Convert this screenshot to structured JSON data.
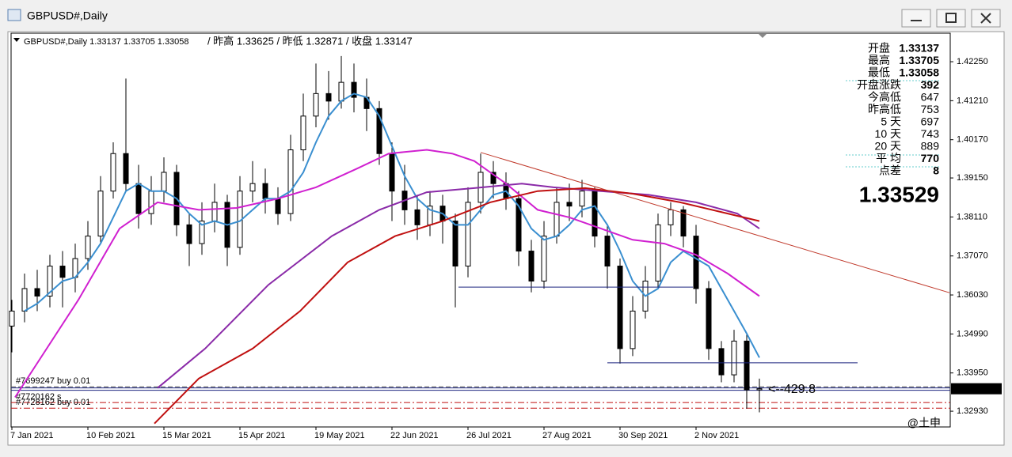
{
  "window": {
    "title": "GBPUSD#,Daily"
  },
  "chart_data": {
    "type": "candlestick",
    "header": "GBPUSD#,Daily  1.33137 1.33705 1.33058",
    "header_extra": "/ 昨高 1.33625 / 昨低 1.32871 / 收盘 1.33147",
    "xlim": [
      0,
      296
    ],
    "ylim": [
      1.3251,
      1.4301
    ],
    "grid": false,
    "yticks": [
      {
        "value": 1.4225,
        "label": "1.42250"
      },
      {
        "value": 1.4121,
        "label": "1.41210"
      },
      {
        "value": 1.4017,
        "label": "1.40170"
      },
      {
        "value": 1.3915,
        "label": "1.39150"
      },
      {
        "value": 1.3811,
        "label": "1.38110"
      },
      {
        "value": 1.3707,
        "label": "1.37070"
      },
      {
        "value": 1.3603,
        "label": "1.36030"
      },
      {
        "value": 1.3499,
        "label": "1.34990"
      },
      {
        "value": 1.3395,
        "label": "1.33950"
      },
      {
        "value": 1.3293,
        "label": "1.32930"
      }
    ],
    "xticks": [
      {
        "value": 0,
        "label": "7 Jan 2021"
      },
      {
        "value": 24,
        "label": "10 Feb 2021"
      },
      {
        "value": 48,
        "label": "15 Mar 2021"
      },
      {
        "value": 72,
        "label": "15 Apr 2021"
      },
      {
        "value": 96,
        "label": "19 May 2021"
      },
      {
        "value": 120,
        "label": "22 Jun 2021"
      },
      {
        "value": 144,
        "label": "26 Jul 2021"
      },
      {
        "value": 168,
        "label": "27 Aug 2021"
      },
      {
        "value": 192,
        "label": "30 Sep 2021"
      },
      {
        "value": 216,
        "label": "2 Nov 2021"
      }
    ],
    "candles": {
      "x": [
        0,
        4,
        8,
        12,
        16,
        20,
        24,
        28,
        32,
        36,
        40,
        44,
        48,
        52,
        56,
        60,
        64,
        68,
        72,
        76,
        80,
        84,
        88,
        92,
        96,
        100,
        104,
        108,
        112,
        116,
        120,
        124,
        128,
        132,
        136,
        140,
        144,
        148,
        152,
        156,
        160,
        164,
        168,
        172,
        176,
        180,
        184,
        188,
        192,
        196,
        200,
        204,
        208,
        212,
        216,
        220,
        224,
        228,
        232,
        236
      ],
      "open": [
        1.352,
        1.356,
        1.362,
        1.36,
        1.368,
        1.365,
        1.37,
        1.376,
        1.388,
        1.398,
        1.39,
        1.382,
        1.388,
        1.393,
        1.379,
        1.374,
        1.38,
        1.385,
        1.373,
        1.388,
        1.39,
        1.386,
        1.382,
        1.399,
        1.408,
        1.414,
        1.412,
        1.417,
        1.413,
        1.41,
        1.398,
        1.388,
        1.383,
        1.379,
        1.384,
        1.38,
        1.368,
        1.385,
        1.393,
        1.39,
        1.386,
        1.372,
        1.364,
        1.376,
        1.385,
        1.384,
        1.388,
        1.376,
        1.368,
        1.346,
        1.356,
        1.364,
        1.379,
        1.383,
        1.376,
        1.362,
        1.346,
        1.339,
        1.348,
        1.335
      ],
      "high": [
        1.359,
        1.366,
        1.367,
        1.371,
        1.372,
        1.374,
        1.38,
        1.392,
        1.401,
        1.418,
        1.395,
        1.392,
        1.397,
        1.395,
        1.382,
        1.385,
        1.39,
        1.387,
        1.392,
        1.396,
        1.394,
        1.389,
        1.403,
        1.414,
        1.422,
        1.42,
        1.424,
        1.422,
        1.418,
        1.412,
        1.401,
        1.395,
        1.387,
        1.388,
        1.387,
        1.382,
        1.389,
        1.398,
        1.396,
        1.393,
        1.388,
        1.375,
        1.38,
        1.389,
        1.39,
        1.391,
        1.389,
        1.379,
        1.37,
        1.36,
        1.368,
        1.382,
        1.385,
        1.384,
        1.379,
        1.364,
        1.348,
        1.351,
        1.35,
        1.338
      ],
      "low": [
        1.345,
        1.353,
        1.356,
        1.357,
        1.357,
        1.361,
        1.367,
        1.374,
        1.386,
        1.388,
        1.378,
        1.379,
        1.385,
        1.376,
        1.368,
        1.371,
        1.377,
        1.368,
        1.371,
        1.385,
        1.382,
        1.379,
        1.38,
        1.396,
        1.405,
        1.407,
        1.41,
        1.409,
        1.404,
        1.395,
        1.38,
        1.379,
        1.375,
        1.376,
        1.374,
        1.357,
        1.365,
        1.382,
        1.386,
        1.383,
        1.368,
        1.361,
        1.362,
        1.374,
        1.38,
        1.381,
        1.373,
        1.362,
        1.342,
        1.344,
        1.354,
        1.362,
        1.376,
        1.373,
        1.358,
        1.343,
        1.337,
        1.337,
        1.33,
        1.329
      ],
      "close": [
        1.356,
        1.362,
        1.36,
        1.368,
        1.365,
        1.37,
        1.376,
        1.388,
        1.398,
        1.39,
        1.382,
        1.388,
        1.393,
        1.379,
        1.374,
        1.38,
        1.385,
        1.373,
        1.388,
        1.39,
        1.386,
        1.382,
        1.399,
        1.408,
        1.414,
        1.412,
        1.417,
        1.413,
        1.41,
        1.398,
        1.388,
        1.383,
        1.379,
        1.384,
        1.38,
        1.368,
        1.385,
        1.393,
        1.39,
        1.386,
        1.372,
        1.364,
        1.376,
        1.385,
        1.384,
        1.388,
        1.376,
        1.368,
        1.346,
        1.356,
        1.364,
        1.379,
        1.383,
        1.376,
        1.362,
        1.346,
        1.339,
        1.348,
        1.335,
        1.3353
      ]
    },
    "ma": [
      {
        "color": "#3a8fd0",
        "x": [
          4,
          8,
          12,
          16,
          20,
          24,
          28,
          32,
          36,
          40,
          44,
          48,
          52,
          56,
          60,
          64,
          68,
          72,
          76,
          80,
          84,
          88,
          92,
          96,
          100,
          104,
          108,
          112,
          116,
          120,
          124,
          128,
          132,
          136,
          140,
          144,
          148,
          152,
          156,
          160,
          164,
          168,
          172,
          176,
          180,
          184,
          188,
          192,
          196,
          200,
          204,
          208,
          212,
          216,
          220,
          224,
          228,
          232,
          236
        ],
        "values": [
          1.356,
          1.358,
          1.361,
          1.364,
          1.365,
          1.369,
          1.374,
          1.381,
          1.388,
          1.39,
          1.388,
          1.388,
          1.386,
          1.382,
          1.379,
          1.38,
          1.379,
          1.38,
          1.383,
          1.386,
          1.386,
          1.388,
          1.393,
          1.401,
          1.408,
          1.412,
          1.414,
          1.413,
          1.408,
          1.4,
          1.392,
          1.386,
          1.383,
          1.382,
          1.379,
          1.379,
          1.383,
          1.387,
          1.388,
          1.384,
          1.378,
          1.375,
          1.376,
          1.379,
          1.383,
          1.384,
          1.379,
          1.372,
          1.364,
          1.36,
          1.362,
          1.369,
          1.372,
          1.37,
          1.368,
          1.362,
          1.356,
          1.35,
          1.3436
        ]
      },
      {
        "color": "#d020d0",
        "x": [
          1,
          21,
          34,
          46,
          59,
          71,
          84,
          96,
          109,
          119,
          131,
          139,
          146,
          156,
          166,
          176,
          186,
          196,
          206,
          216,
          226,
          236
        ],
        "values": [
          1.333,
          1.359,
          1.378,
          1.385,
          1.383,
          1.3835,
          1.386,
          1.389,
          1.394,
          1.398,
          1.399,
          1.398,
          1.396,
          1.39,
          1.383,
          1.381,
          1.378,
          1.375,
          1.374,
          1.371,
          1.366,
          1.36
        ]
      },
      {
        "color": "#8a2aa8",
        "x": [
          46,
          61,
          81,
          101,
          116,
          131,
          146,
          161,
          171,
          186,
          201,
          216,
          229,
          236
        ],
        "values": [
          1.3355,
          1.346,
          1.363,
          1.376,
          1.383,
          1.3877,
          1.3888,
          1.39,
          1.389,
          1.388,
          1.387,
          1.385,
          1.382,
          1.378
        ]
      },
      {
        "color": "#c01010",
        "x": [
          45,
          59,
          76,
          91,
          106,
          121,
          136,
          151,
          166,
          181,
          196,
          211,
          226,
          236
        ],
        "values": [
          1.326,
          1.338,
          1.346,
          1.356,
          1.369,
          1.376,
          1.38,
          1.385,
          1.388,
          1.3888,
          1.3873,
          1.385,
          1.382,
          1.38
        ]
      }
    ],
    "lines": [
      {
        "color": "#c0392b",
        "x": [
          148,
          296
        ],
        "values": [
          1.3983,
          1.3609
        ]
      },
      {
        "color": "#1a237e",
        "x": [
          141,
          215
        ],
        "values": [
          1.3624,
          1.3624
        ]
      },
      {
        "color": "#1a237e",
        "x": [
          188,
          267
        ],
        "values": [
          1.3422,
          1.3422
        ]
      }
    ],
    "orders": [
      {
        "label": "#7699247 buy 0.01",
        "value": 1.3358,
        "style": "dashed",
        "color": "#555555"
      },
      {
        "label": "#7720162 s",
        "value": 1.3316,
        "style": "dashdot",
        "color": "#c01010"
      },
      {
        "label": "#7728162 buy 0.01",
        "value": 1.3301,
        "style": "dashdot",
        "color": "#c01010"
      }
    ],
    "current_price": 1.33529,
    "distance_note": "<--429.8",
    "stats": [
      {
        "label": "开盘",
        "value": "1.33137"
      },
      {
        "label": "最高",
        "value": "1.33705"
      },
      {
        "label": "最低",
        "value": "1.33058"
      },
      {
        "label": "开盘涨跌",
        "value": "392"
      },
      {
        "label": "今高低",
        "value": "647"
      },
      {
        "label": "昨高低",
        "value": "753"
      },
      {
        "label": "5 天",
        "value": "697"
      },
      {
        "label": "10 天",
        "value": "743"
      },
      {
        "label": "20 天",
        "value": "889"
      },
      {
        "label": "平 均",
        "value": "770"
      },
      {
        "label": "点差",
        "value": "8"
      }
    ],
    "big_price": "1.33529",
    "watermark": "@土申"
  }
}
